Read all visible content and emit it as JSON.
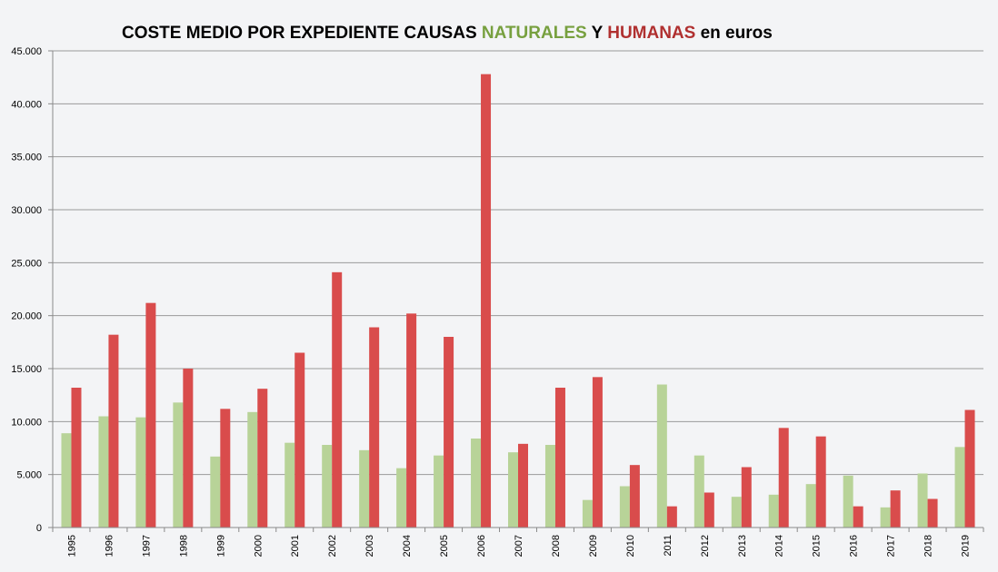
{
  "chart_data": {
    "type": "bar",
    "title": {
      "part1": "COSTE MEDIO POR EXPEDIENTE CAUSAS ",
      "part2": "NATURALES",
      "part3": " Y ",
      "part4": "HUMANAS",
      "part5": " en euros"
    },
    "title_colors": {
      "normal": "#000000",
      "naturales": "#77a03f",
      "humanas": "#b03030"
    },
    "categories": [
      "1995",
      "1996",
      "1997",
      "1998",
      "1999",
      "2000",
      "2001",
      "2002",
      "2003",
      "2004",
      "2005",
      "2006",
      "2007",
      "2008",
      "2009",
      "2010",
      "2011",
      "2012",
      "2013",
      "2014",
      "2015",
      "2016",
      "2017",
      "2018",
      "2019"
    ],
    "series": [
      {
        "color": "#b8d398",
        "values": [
          8900,
          10500,
          10400,
          11800,
          6700,
          10900,
          8000,
          7800,
          7300,
          5600,
          6800,
          8400,
          7100,
          7800,
          2600,
          3900,
          13500,
          6800,
          2900,
          3100,
          4100,
          4900,
          1900,
          5100,
          7600
        ]
      },
      {
        "color": "#d94c4c",
        "values": [
          13200,
          18200,
          21200,
          15000,
          11200,
          13100,
          16500,
          24100,
          18900,
          20200,
          18000,
          42800,
          7900,
          13200,
          14200,
          5900,
          2000,
          3300,
          5700,
          9400,
          8600,
          2000,
          3500,
          2700,
          11100
        ]
      }
    ],
    "ylim": [
      0,
      45000
    ],
    "yticks": [
      0,
      5000,
      10000,
      15000,
      20000,
      25000,
      30000,
      35000,
      40000,
      45000
    ],
    "ytick_labels": [
      "0",
      "5.000",
      "10.000",
      "15.000",
      "20.000",
      "25.000",
      "30.000",
      "35.000",
      "40.000",
      "45.000"
    ],
    "grid": true,
    "grid_color": "#9a9a9a",
    "axis_color": "#8a8a8a"
  }
}
